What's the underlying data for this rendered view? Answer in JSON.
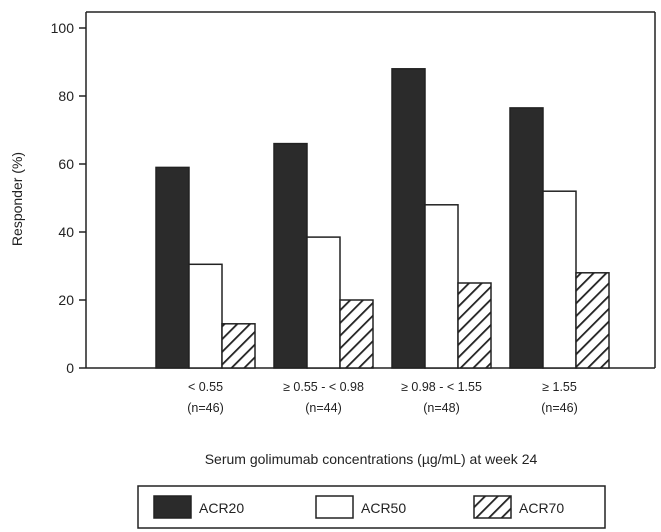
{
  "chart_data": {
    "type": "bar",
    "categories": [
      {
        "line1": "< 0.55",
        "line2": "(n=46)"
      },
      {
        "line1": "≥ 0.55 - < 0.98",
        "line2": "(n=44)"
      },
      {
        "line1": "≥ 0.98 - < 1.55",
        "line2": "(n=48)"
      },
      {
        "line1": "≥ 1.55",
        "line2": "(n=46)"
      }
    ],
    "series": [
      {
        "name": "ACR20",
        "values": [
          59,
          66,
          88,
          76.5
        ],
        "style": "solid",
        "color": "#2b2b2b"
      },
      {
        "name": "ACR50",
        "values": [
          30.5,
          38.5,
          48,
          52
        ],
        "style": "open",
        "color": "#ffffff"
      },
      {
        "name": "ACR70",
        "values": [
          13,
          20,
          25,
          28
        ],
        "style": "hatched",
        "color": "#ffffff"
      }
    ],
    "ylabel": "Responder (%)",
    "xlabel": "Serum golimumab concentrations (µg/mL) at week 24",
    "ylim": [
      0,
      100
    ],
    "yticks": [
      0,
      20,
      40,
      60,
      80,
      100
    ],
    "grid": false,
    "legend_position": "bottom"
  }
}
